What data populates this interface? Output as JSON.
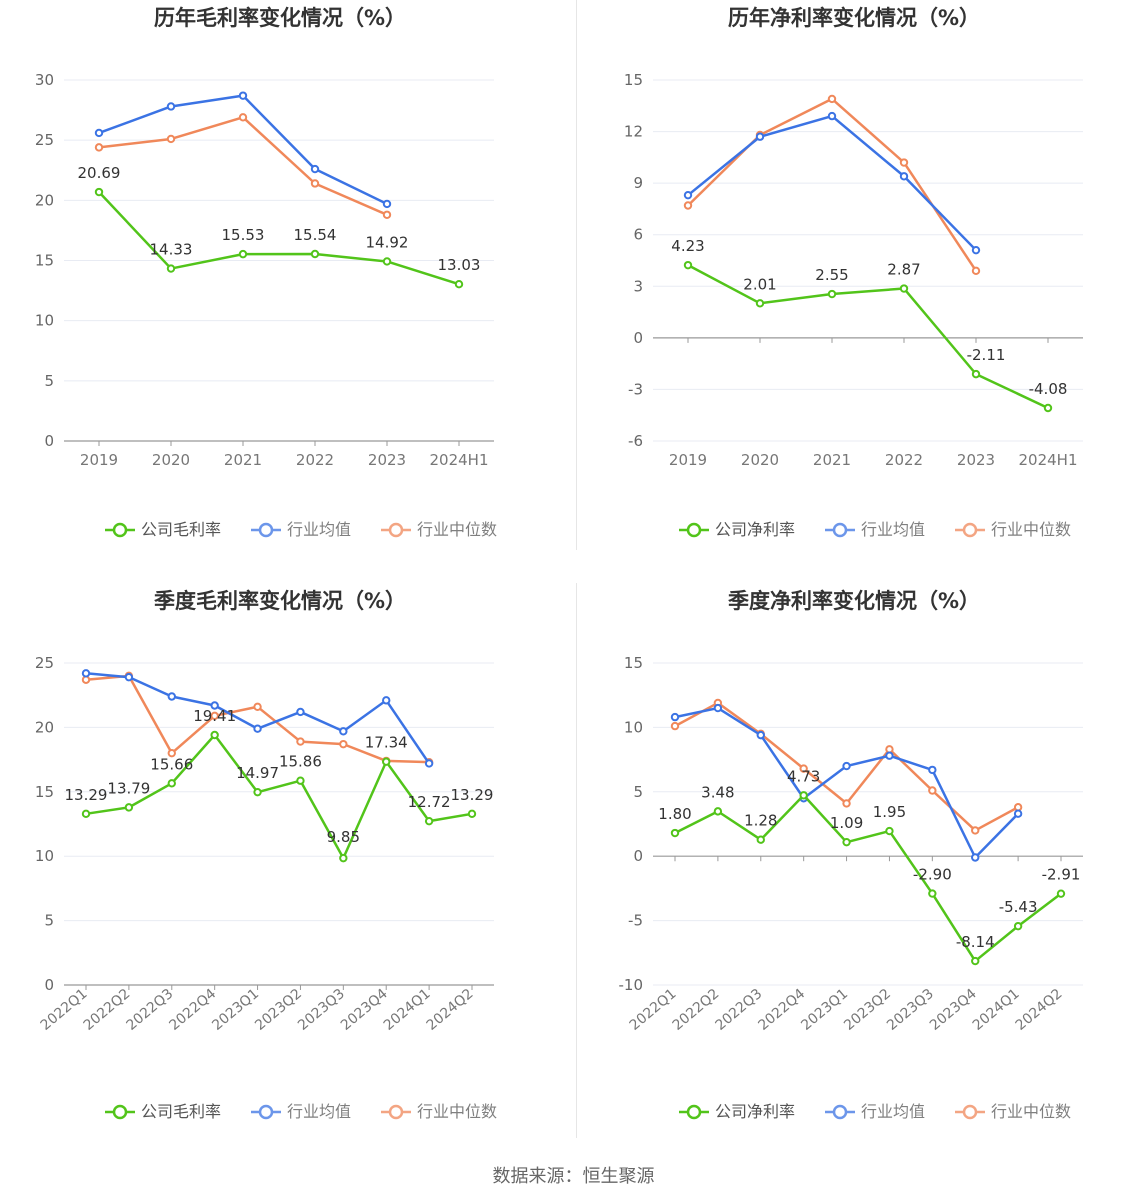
{
  "footer": {
    "source_label": "数据来源：恒生聚源"
  },
  "legend": {
    "company_gross": "公司毛利率",
    "company_net": "公司净利率",
    "industry_avg": "行业均值",
    "industry_median": "行业中位数"
  },
  "colors": {
    "company": "#52c41a",
    "industry_avg": "#3b73e4",
    "industry_median": "#f0885a"
  },
  "chart_data": [
    {
      "id": "annual_gross",
      "type": "line",
      "title": "历年毛利率变化情况（%）",
      "categories": [
        "2019",
        "2020",
        "2021",
        "2022",
        "2023",
        "2024H1"
      ],
      "ylim": [
        0,
        30
      ],
      "yticks": [
        0,
        5,
        10,
        15,
        20,
        25,
        30
      ],
      "grid": true,
      "legend_position": "bottom",
      "series": [
        {
          "name": "公司毛利率",
          "role": "company",
          "values": [
            20.69,
            14.33,
            15.53,
            15.54,
            14.92,
            13.03
          ],
          "labels": [
            "20.69",
            "14.33",
            "15.53",
            "15.54",
            "14.92",
            "13.03"
          ]
        },
        {
          "name": "行业均值",
          "role": "industry_avg",
          "values": [
            25.6,
            27.8,
            28.7,
            22.6,
            19.7,
            null
          ]
        },
        {
          "name": "行业中位数",
          "role": "industry_median",
          "values": [
            24.4,
            25.1,
            26.9,
            21.4,
            18.8,
            null
          ]
        }
      ]
    },
    {
      "id": "annual_net",
      "type": "line",
      "title": "历年净利率变化情况（%）",
      "categories": [
        "2019",
        "2020",
        "2021",
        "2022",
        "2023",
        "2024H1"
      ],
      "ylim": [
        -6,
        15
      ],
      "yticks": [
        -6,
        -3,
        0,
        3,
        6,
        9,
        12,
        15
      ],
      "grid": true,
      "legend_position": "bottom",
      "series": [
        {
          "name": "公司净利率",
          "role": "company",
          "values": [
            4.23,
            2.01,
            2.55,
            2.87,
            -2.11,
            -4.08
          ],
          "labels": [
            "4.23",
            "2.01",
            "2.55",
            "2.87",
            "-2.11",
            "-4.08"
          ]
        },
        {
          "name": "行业均值",
          "role": "industry_avg",
          "values": [
            8.3,
            11.7,
            12.9,
            9.4,
            5.1,
            null
          ]
        },
        {
          "name": "行业中位数",
          "role": "industry_median",
          "values": [
            7.7,
            11.8,
            13.9,
            10.2,
            3.9,
            null
          ]
        }
      ]
    },
    {
      "id": "quarterly_gross",
      "type": "line",
      "title": "季度毛利率变化情况（%）",
      "categories": [
        "2022Q1",
        "2022Q2",
        "2022Q3",
        "2022Q4",
        "2023Q1",
        "2023Q2",
        "2023Q3",
        "2023Q4",
        "2024Q1",
        "2024Q2"
      ],
      "ylim": [
        0,
        25
      ],
      "yticks": [
        0,
        5,
        10,
        15,
        20,
        25
      ],
      "grid": true,
      "legend_position": "bottom",
      "series": [
        {
          "name": "公司毛利率",
          "role": "company",
          "values": [
            13.29,
            13.79,
            15.66,
            19.41,
            14.97,
            15.86,
            9.85,
            17.34,
            12.72,
            13.29
          ],
          "labels": [
            "13.29",
            "13.79",
            "15.66",
            "19.41",
            "14.97",
            "15.86",
            "9.85",
            "17.34",
            "12.72",
            "13.29"
          ]
        },
        {
          "name": "行业均值",
          "role": "industry_avg",
          "values": [
            24.2,
            23.9,
            22.4,
            21.7,
            19.9,
            21.2,
            19.7,
            22.1,
            17.2,
            null
          ]
        },
        {
          "name": "行业中位数",
          "role": "industry_median",
          "values": [
            23.7,
            24.0,
            18.0,
            20.9,
            21.6,
            18.9,
            18.7,
            17.4,
            17.3,
            null
          ]
        }
      ]
    },
    {
      "id": "quarterly_net",
      "type": "line",
      "title": "季度净利率变化情况（%）",
      "categories": [
        "2022Q1",
        "2022Q2",
        "2022Q3",
        "2022Q4",
        "2023Q1",
        "2023Q2",
        "2023Q3",
        "2023Q4",
        "2024Q1",
        "2024Q2"
      ],
      "ylim": [
        -10,
        15
      ],
      "yticks": [
        -10,
        -5,
        0,
        5,
        10,
        15
      ],
      "grid": true,
      "legend_position": "bottom",
      "series": [
        {
          "name": "公司净利率",
          "role": "company",
          "values": [
            1.8,
            3.48,
            1.28,
            4.73,
            1.09,
            1.95,
            -2.9,
            -8.14,
            -5.43,
            -2.91
          ],
          "labels": [
            "1.80",
            "3.48",
            "1.28",
            "4.73",
            "1.09",
            "1.95",
            "-2.90",
            "-8.14",
            "-5.43",
            "-2.91"
          ]
        },
        {
          "name": "行业均值",
          "role": "industry_avg",
          "values": [
            10.8,
            11.5,
            9.4,
            4.5,
            7.0,
            7.8,
            6.7,
            -0.1,
            3.3,
            null
          ]
        },
        {
          "name": "行业中位数",
          "role": "industry_median",
          "values": [
            10.1,
            11.9,
            9.5,
            6.8,
            4.1,
            8.3,
            5.1,
            2.0,
            3.8,
            null
          ]
        }
      ]
    }
  ]
}
